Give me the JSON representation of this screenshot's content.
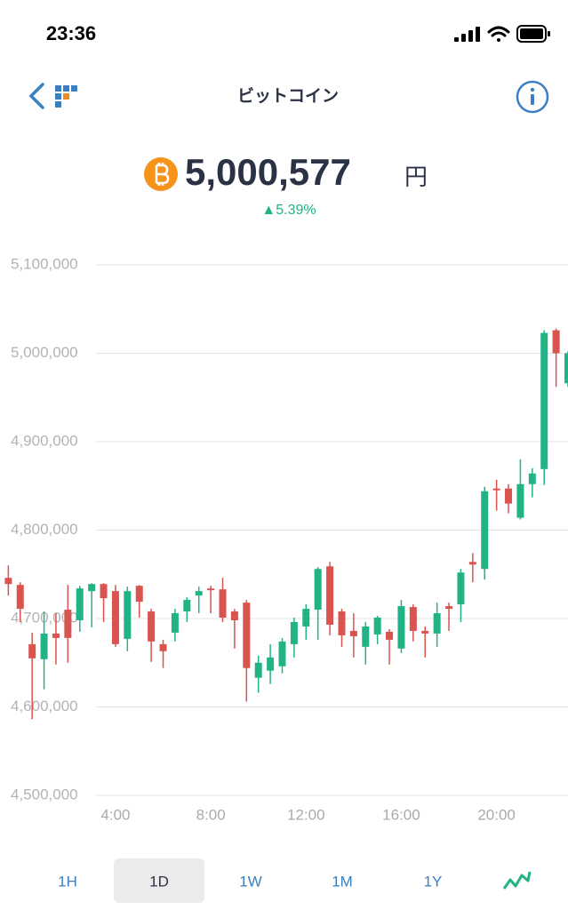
{
  "status_bar": {
    "time": "23:36"
  },
  "header": {
    "title": "ビットコイン"
  },
  "price": {
    "amount": "5,000,577",
    "currency": "円",
    "change": "▲5.39%"
  },
  "tabs": {
    "items": [
      "1H",
      "1D",
      "1W",
      "1M",
      "1Y"
    ],
    "selected": 1
  },
  "chart_data": {
    "type": "candlestick",
    "x": [
      -0.5,
      0,
      0.5,
      1,
      1.5,
      2,
      2.5,
      3,
      3.5,
      4,
      4.5,
      5,
      5.5,
      6,
      6.5,
      7,
      7.5,
      8,
      8.5,
      9,
      9.5,
      10,
      10.5,
      11,
      11.5,
      12,
      12.5,
      13,
      13.5,
      14,
      14.5,
      15,
      15.5,
      16,
      16.5,
      17,
      17.5,
      18,
      18.5,
      19,
      19.5,
      20,
      20.5,
      21,
      21.5,
      22,
      22.5,
      23
    ],
    "open": [
      4746000,
      4738000,
      4671000,
      4654000,
      4683000,
      4710000,
      4698000,
      4731000,
      4739000,
      4731000,
      4677000,
      4737000,
      4708000,
      4671000,
      4684000,
      4708000,
      4726000,
      4734000,
      4733000,
      4708000,
      4718000,
      4633000,
      4641000,
      4646000,
      4671000,
      4691000,
      4710000,
      4759000,
      4708000,
      4686000,
      4668000,
      4682000,
      4685000,
      4666000,
      4713000,
      4686000,
      4683000,
      4714000,
      4716000,
      4764000,
      4756000,
      4847000,
      4847000,
      4814000,
      4852000,
      4869000,
      5026000,
      4966000
    ],
    "high": [
      4760000,
      4741000,
      4684000,
      4708000,
      4706000,
      4738000,
      4737000,
      4740000,
      4740000,
      4738000,
      4736000,
      4738000,
      4711000,
      4676000,
      4711000,
      4724000,
      4736000,
      4737000,
      4746000,
      4711000,
      4721000,
      4658000,
      4671000,
      4678000,
      4701000,
      4716000,
      4758000,
      4764000,
      4711000,
      4706000,
      4696000,
      4703000,
      4688000,
      4721000,
      4716000,
      4691000,
      4718000,
      4718000,
      4756000,
      4774000,
      4849000,
      4857000,
      4852000,
      4880000,
      4870000,
      5026000,
      5028000,
      5002000
    ],
    "low": [
      4726000,
      4696000,
      4586000,
      4620000,
      4648000,
      4650000,
      4685000,
      4690000,
      4696000,
      4668000,
      4663000,
      4701000,
      4651000,
      4644000,
      4674000,
      4696000,
      4706000,
      4706000,
      4696000,
      4666000,
      4606000,
      4616000,
      4626000,
      4638000,
      4656000,
      4676000,
      4676000,
      4681000,
      4668000,
      4656000,
      4648000,
      4671000,
      4648000,
      4661000,
      4674000,
      4656000,
      4668000,
      4686000,
      4696000,
      4741000,
      4744000,
      4822000,
      4819000,
      4812000,
      4837000,
      4851000,
      4962000,
      4962000
    ],
    "close": [
      4739000,
      4711000,
      4655000,
      4683000,
      4678000,
      4678000,
      4734000,
      4739000,
      4723000,
      4671000,
      4731000,
      4719000,
      4674000,
      4663000,
      4706000,
      4721000,
      4731000,
      4732000,
      4701000,
      4698000,
      4644000,
      4650000,
      4656000,
      4674000,
      4696000,
      4711000,
      4756000,
      4693000,
      4681000,
      4680000,
      4691000,
      4701000,
      4676000,
      4714000,
      4686000,
      4683000,
      4706000,
      4711000,
      4752000,
      4761000,
      4844000,
      4845000,
      4830000,
      4852000,
      4864000,
      5023000,
      5000000,
      5000000
    ],
    "up_color": "#21b385",
    "down_color": "#d9534f",
    "xlim": [
      -0.85,
      23
    ],
    "ylim": [
      4500000,
      5100000
    ],
    "xticks": [
      {
        "value": 4,
        "label": "4:00"
      },
      {
        "value": 8,
        "label": "8:00"
      },
      {
        "value": 12,
        "label": "12:00"
      },
      {
        "value": 16,
        "label": "16:00"
      },
      {
        "value": 20,
        "label": "20:00"
      }
    ],
    "yticks": [
      {
        "value": 4500000,
        "label": "4,500,000"
      },
      {
        "value": 4600000,
        "label": "4,600,000"
      },
      {
        "value": 4700000,
        "label": "4,700,000"
      },
      {
        "value": 4800000,
        "label": "4,800,000"
      },
      {
        "value": 4900000,
        "label": "4,900,000"
      },
      {
        "value": 5000000,
        "label": "5,000,000"
      },
      {
        "value": 5100000,
        "label": "5,100,000"
      }
    ],
    "grid": true
  }
}
